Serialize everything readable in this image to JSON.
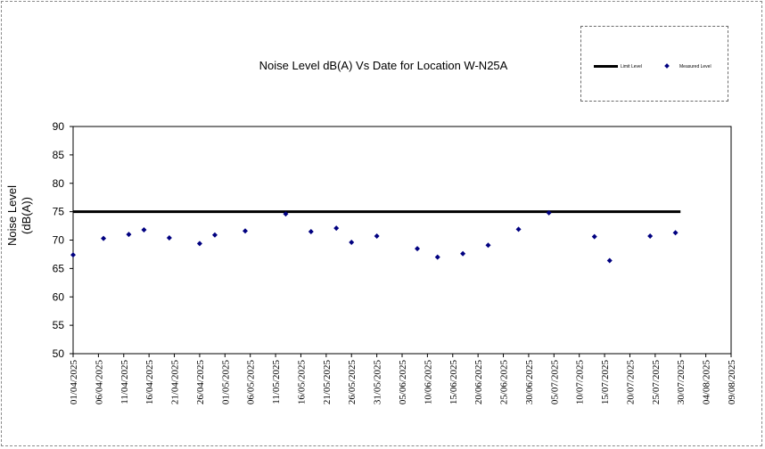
{
  "chart_data": {
    "type": "scatter",
    "title": "Noise Level dB(A) Vs Date for Location W-N25A",
    "xlabel": "",
    "ylabel_lines": [
      "Noise Level",
      "(dB(A))"
    ],
    "ylim": [
      50,
      90
    ],
    "y_ticks": [
      50,
      55,
      60,
      65,
      70,
      75,
      80,
      85,
      90
    ],
    "xlim": [
      "01/04/2025",
      "09/08/2025"
    ],
    "x_ticks": [
      "01/04/2025",
      "06/04/2025",
      "11/04/2025",
      "16/04/2025",
      "21/04/2025",
      "26/04/2025",
      "01/05/2025",
      "06/05/2025",
      "11/05/2025",
      "16/05/2025",
      "21/05/2025",
      "26/05/2025",
      "31/05/2025",
      "05/06/2025",
      "10/06/2025",
      "15/06/2025",
      "20/06/2025",
      "25/06/2025",
      "30/06/2025",
      "05/07/2025",
      "10/07/2025",
      "15/07/2025",
      "20/07/2025",
      "25/07/2025",
      "30/07/2025",
      "04/08/2025",
      "09/08/2025"
    ],
    "grid": false,
    "legend_position": "top-right",
    "series": [
      {
        "name": "Limit Level",
        "kind": "line",
        "color": "#000000",
        "points": [
          {
            "x": "01/04/2025",
            "y": 75
          },
          {
            "x": "30/07/2025",
            "y": 75
          }
        ]
      },
      {
        "name": "Measured Level",
        "kind": "scatter",
        "color": "#000080",
        "points": [
          {
            "x": "01/04/2025",
            "y": 67.4
          },
          {
            "x": "07/04/2025",
            "y": 70.3
          },
          {
            "x": "12/04/2025",
            "y": 71.0
          },
          {
            "x": "15/04/2025",
            "y": 71.8
          },
          {
            "x": "20/04/2025",
            "y": 70.4
          },
          {
            "x": "26/04/2025",
            "y": 69.4
          },
          {
            "x": "29/04/2025",
            "y": 70.9
          },
          {
            "x": "05/05/2025",
            "y": 71.6
          },
          {
            "x": "13/05/2025",
            "y": 74.6
          },
          {
            "x": "18/05/2025",
            "y": 71.5
          },
          {
            "x": "23/05/2025",
            "y": 72.1
          },
          {
            "x": "26/05/2025",
            "y": 69.6
          },
          {
            "x": "31/05/2025",
            "y": 70.7
          },
          {
            "x": "08/06/2025",
            "y": 68.5
          },
          {
            "x": "12/06/2025",
            "y": 67.0
          },
          {
            "x": "17/06/2025",
            "y": 67.6
          },
          {
            "x": "22/06/2025",
            "y": 69.1
          },
          {
            "x": "28/06/2025",
            "y": 71.9
          },
          {
            "x": "04/07/2025",
            "y": 74.8
          },
          {
            "x": "13/07/2025",
            "y": 70.6
          },
          {
            "x": "16/07/2025",
            "y": 66.4
          },
          {
            "x": "24/07/2025",
            "y": 70.7
          },
          {
            "x": "29/07/2025",
            "y": 71.3
          }
        ]
      }
    ]
  }
}
